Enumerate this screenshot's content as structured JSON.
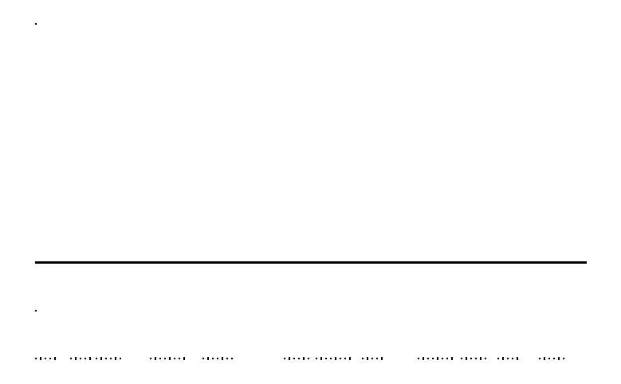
{
  "page": {
    "background": "#ffffff",
    "foreground": "#000000"
  },
  "dot_groups": [
    {
      "count": 5
    },
    {
      "count": 5
    },
    {
      "count": 6
    },
    {
      "count": 8
    },
    {
      "count": 7
    },
    {
      "count": 6
    },
    {
      "count": 8
    },
    {
      "count": 5
    },
    {
      "count": 8
    },
    {
      "count": 6
    },
    {
      "count": 5
    },
    {
      "count": 6
    }
  ]
}
